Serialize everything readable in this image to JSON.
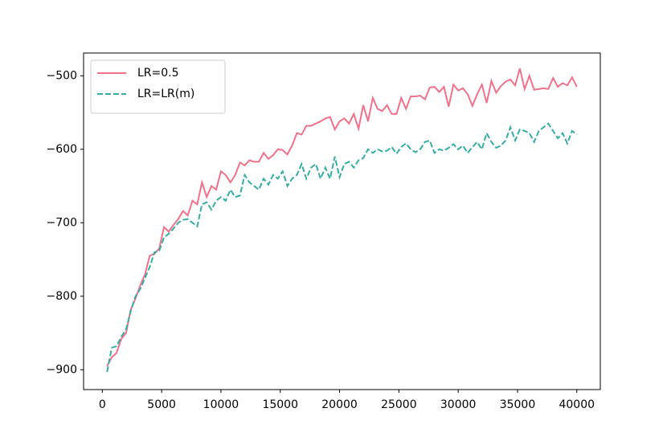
{
  "chart_data": {
    "type": "line",
    "x": [
      400,
      800,
      1200,
      1600,
      2000,
      2400,
      2800,
      3200,
      3600,
      4000,
      4400,
      4800,
      5200,
      5600,
      6000,
      6400,
      6800,
      7200,
      7600,
      8000,
      8400,
      8800,
      9200,
      9600,
      10000,
      10400,
      10800,
      11200,
      11600,
      12000,
      12400,
      12800,
      13200,
      13600,
      14000,
      14400,
      14800,
      15200,
      15600,
      16000,
      16400,
      16800,
      17200,
      17600,
      18000,
      18400,
      18800,
      19200,
      19600,
      20000,
      20400,
      20800,
      21200,
      21600,
      22000,
      22400,
      22800,
      23200,
      23600,
      24000,
      24400,
      24800,
      25200,
      25600,
      26000,
      26400,
      26800,
      27200,
      27600,
      28000,
      28400,
      28800,
      29200,
      29600,
      30000,
      30400,
      30800,
      31200,
      31600,
      32000,
      32400,
      32800,
      33200,
      33600,
      34000,
      34400,
      34800,
      35200,
      35600,
      36000,
      36400,
      36800,
      37200,
      37600,
      38000,
      38400,
      38800,
      39200,
      39600,
      40000
    ],
    "series": [
      {
        "name": "LR=0.5",
        "color": "#f0728a",
        "linestyle": "solid",
        "values": [
          -895,
          -883,
          -877,
          -858,
          -850,
          -818,
          -803,
          -785,
          -770,
          -745,
          -742,
          -735,
          -706,
          -712,
          -703,
          -695,
          -684,
          -690,
          -670,
          -675,
          -645,
          -665,
          -650,
          -655,
          -630,
          -635,
          -645,
          -635,
          -618,
          -622,
          -615,
          -617,
          -617,
          -605,
          -613,
          -608,
          -600,
          -601,
          -607,
          -595,
          -578,
          -580,
          -568,
          -568,
          -565,
          -562,
          -558,
          -556,
          -573,
          -562,
          -558,
          -565,
          -552,
          -572,
          -540,
          -562,
          -530,
          -545,
          -548,
          -540,
          -552,
          -552,
          -530,
          -545,
          -528,
          -528,
          -527,
          -532,
          -516,
          -515,
          -522,
          -515,
          -542,
          -512,
          -520,
          -517,
          -525,
          -541,
          -525,
          -512,
          -537,
          -507,
          -523,
          -514,
          -508,
          -505,
          -513,
          -490,
          -518,
          -500,
          -519,
          -518,
          -517,
          -518,
          -503,
          -515,
          -510,
          -513,
          -502,
          -515
        ]
      },
      {
        "name": "LR=LR(m)",
        "color": "#36ada4",
        "linestyle": "dashed",
        "values": [
          -903,
          -870,
          -868,
          -855,
          -845,
          -820,
          -800,
          -790,
          -775,
          -760,
          -740,
          -738,
          -720,
          -715,
          -708,
          -700,
          -696,
          -695,
          -700,
          -705,
          -675,
          -672,
          -682,
          -670,
          -665,
          -670,
          -655,
          -665,
          -663,
          -635,
          -645,
          -650,
          -655,
          -640,
          -648,
          -635,
          -640,
          -630,
          -650,
          -640,
          -635,
          -620,
          -640,
          -625,
          -620,
          -640,
          -625,
          -640,
          -610,
          -638,
          -620,
          -617,
          -625,
          -615,
          -612,
          -600,
          -605,
          -600,
          -603,
          -602,
          -597,
          -606,
          -597,
          -592,
          -600,
          -604,
          -600,
          -590,
          -588,
          -605,
          -600,
          -602,
          -598,
          -593,
          -600,
          -595,
          -605,
          -597,
          -590,
          -600,
          -578,
          -590,
          -598,
          -595,
          -588,
          -570,
          -588,
          -573,
          -575,
          -578,
          -590,
          -575,
          -570,
          -565,
          -575,
          -585,
          -578,
          -592,
          -575,
          -580
        ]
      }
    ],
    "xlim": [
      -1580,
      41980
    ],
    "ylim": [
      -927,
      -469
    ],
    "xticks": [
      0,
      5000,
      10000,
      15000,
      20000,
      25000,
      30000,
      35000,
      40000
    ],
    "yticks": [
      {
        "value": -900,
        "label": "−900"
      },
      {
        "value": -800,
        "label": "−800"
      },
      {
        "value": -700,
        "label": "−700"
      },
      {
        "value": -600,
        "label": "−600"
      },
      {
        "value": -500,
        "label": "−500"
      }
    ],
    "legend": "upper left"
  }
}
